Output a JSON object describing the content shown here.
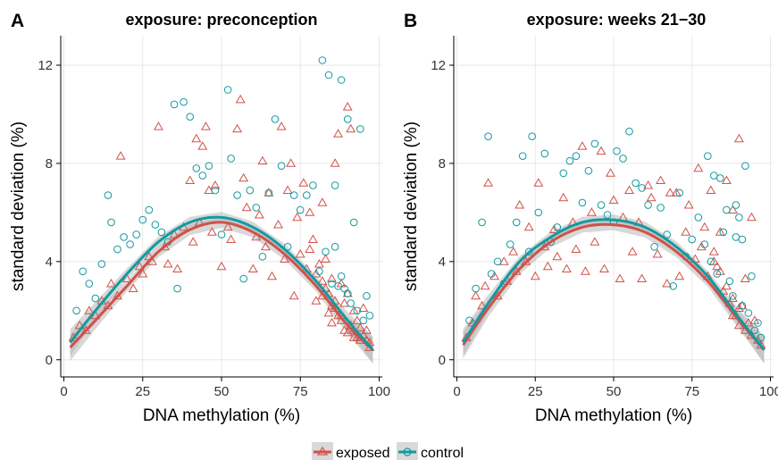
{
  "colors": {
    "exposed": "#d0524a",
    "control": "#139aa0",
    "grid": "#e8e8e8",
    "ribbon": "#b8b8b8"
  },
  "legend": {
    "items": [
      {
        "key": "exposed",
        "label": "exposed"
      },
      {
        "key": "control",
        "label": "control"
      }
    ]
  },
  "chart_data": [
    {
      "type": "scatter",
      "panel_label": "A",
      "title": "exposure: preconception",
      "xlabel": "DNA methylation (%)",
      "ylabel": "standard deviation (%)",
      "xlim": [
        -1,
        101
      ],
      "ylim": [
        -0.7,
        13.2
      ],
      "xticks": [
        0,
        25,
        50,
        75,
        100
      ],
      "yticks": [
        0,
        4,
        8,
        12
      ],
      "grid": true,
      "legend_position": "bottom",
      "series": [
        {
          "name": "exposed",
          "marker": "triangle",
          "fit": {
            "x": [
              2,
              10,
              20,
              30,
              40,
              50,
              60,
              70,
              80,
              90,
              98
            ],
            "y": [
              0.5,
              1.6,
              3.0,
              4.4,
              5.3,
              5.6,
              5.2,
              4.3,
              3.0,
              1.4,
              0.4
            ]
          },
          "x": [
            3,
            5,
            7,
            8,
            10,
            12,
            14,
            15,
            17,
            18,
            20,
            22,
            24,
            25,
            27,
            28,
            30,
            32,
            33,
            35,
            36,
            38,
            40,
            41,
            42,
            43,
            44,
            45,
            46,
            47,
            48,
            50,
            52,
            53,
            55,
            56,
            57,
            58,
            60,
            61,
            62,
            63,
            64,
            65,
            66,
            68,
            69,
            70,
            71,
            72,
            73,
            74,
            75,
            76,
            77,
            78,
            79,
            80,
            80,
            81,
            82,
            82,
            83,
            83,
            84,
            84,
            85,
            85,
            86,
            86,
            87,
            87,
            88,
            88,
            89,
            89,
            90,
            90,
            91,
            91,
            92,
            92,
            93,
            93,
            94,
            94,
            95,
            95,
            96,
            96,
            97,
            97,
            85,
            88,
            90,
            92,
            94,
            78,
            82,
            86
          ],
          "y": [
            0.9,
            1.4,
            1.2,
            2.0,
            1.8,
            2.4,
            2.2,
            3.1,
            2.6,
            8.3,
            3.3,
            2.9,
            3.8,
            3.5,
            4.2,
            4.0,
            9.5,
            4.6,
            3.9,
            5.1,
            3.7,
            5.4,
            7.3,
            4.8,
            9.0,
            5.6,
            8.7,
            9.5,
            6.9,
            5.2,
            7.1,
            3.8,
            5.4,
            4.9,
            9.4,
            10.6,
            7.4,
            6.2,
            3.7,
            5.0,
            5.9,
            8.1,
            4.6,
            6.8,
            3.4,
            5.5,
            9.5,
            4.1,
            6.9,
            8.0,
            2.6,
            5.8,
            4.3,
            7.2,
            3.7,
            6.0,
            4.9,
            2.4,
            3.5,
            3.9,
            2.6,
            6.4,
            2.9,
            4.1,
            1.9,
            2.7,
            3.3,
            2.2,
            8.0,
            2.1,
            9.2,
            1.8,
            3.1,
            1.6,
            2.3,
            1.2,
            10.3,
            2.7,
            9.4,
            1.4,
            2.0,
            1.2,
            1.6,
            0.9,
            1.3,
            0.9,
            2.1,
            1.0,
            0.8,
            1.2,
            0.7,
            0.5,
            1.5,
            1.8,
            1.1,
            0.9,
            0.8,
            4.5,
            3.2,
            2.4
          ]
        },
        {
          "name": "control",
          "marker": "circle",
          "fit": {
            "x": [
              2,
              10,
              20,
              30,
              40,
              50,
              60,
              70,
              80,
              90,
              98
            ],
            "y": [
              0.7,
              2.0,
              3.5,
              4.8,
              5.6,
              5.8,
              5.4,
              4.5,
              3.2,
              1.6,
              0.4
            ]
          },
          "x": [
            4,
            6,
            8,
            10,
            12,
            14,
            15,
            17,
            19,
            21,
            23,
            25,
            27,
            29,
            31,
            33,
            35,
            36,
            38,
            40,
            42,
            44,
            46,
            48,
            50,
            52,
            53,
            55,
            57,
            59,
            61,
            63,
            65,
            67,
            69,
            71,
            73,
            75,
            77,
            79,
            81,
            82,
            83,
            84,
            85,
            86,
            87,
            88,
            89,
            90,
            91,
            92,
            93,
            94,
            95,
            96,
            97,
            86,
            88,
            90
          ],
          "y": [
            2.0,
            3.6,
            3.1,
            2.5,
            3.9,
            6.7,
            5.6,
            4.5,
            5.0,
            4.7,
            5.1,
            5.7,
            6.1,
            5.5,
            5.2,
            4.8,
            10.4,
            2.9,
            10.5,
            9.9,
            7.8,
            7.5,
            7.9,
            6.9,
            5.1,
            11.0,
            8.2,
            6.7,
            3.3,
            6.9,
            6.2,
            4.2,
            6.8,
            9.8,
            7.9,
            4.6,
            6.7,
            6.1,
            6.7,
            7.1,
            3.6,
            12.2,
            4.4,
            11.6,
            3.1,
            7.1,
            3.0,
            11.4,
            2.9,
            9.8,
            2.3,
            5.6,
            2.0,
            9.4,
            1.6,
            2.6,
            1.8,
            4.6,
            3.4,
            2.7
          ]
        }
      ]
    },
    {
      "type": "scatter",
      "panel_label": "B",
      "title": "exposure: weeks 21−30",
      "xlabel": "DNA methylation (%)",
      "ylabel": "standard deviation (%)",
      "xlim": [
        -1,
        101
      ],
      "ylim": [
        -0.7,
        13.2
      ],
      "xticks": [
        0,
        25,
        50,
        75,
        100
      ],
      "yticks": [
        0,
        4,
        8,
        12
      ],
      "grid": true,
      "legend_position": "bottom",
      "series": [
        {
          "name": "exposed",
          "marker": "triangle",
          "fit": {
            "x": [
              2,
              10,
              20,
              30,
              40,
              50,
              60,
              70,
              80,
              90,
              98
            ],
            "y": [
              0.6,
              2.1,
              3.7,
              4.8,
              5.4,
              5.5,
              5.2,
              4.4,
              3.2,
              1.6,
              0.4
            ]
          },
          "x": [
            3,
            5,
            6,
            8,
            9,
            10,
            12,
            13,
            15,
            16,
            18,
            19,
            20,
            22,
            23,
            25,
            26,
            28,
            29,
            31,
            32,
            34,
            35,
            37,
            38,
            40,
            41,
            43,
            44,
            46,
            47,
            49,
            50,
            52,
            53,
            55,
            56,
            58,
            59,
            61,
            62,
            64,
            65,
            67,
            68,
            70,
            71,
            73,
            74,
            76,
            77,
            79,
            80,
            81,
            82,
            83,
            84,
            85,
            86,
            87,
            88,
            89,
            90,
            91,
            92,
            93,
            94,
            95,
            96,
            97,
            78,
            82,
            86,
            88,
            90,
            92,
            94,
            84,
            88,
            90
          ],
          "y": [
            0.9,
            1.5,
            2.6,
            2.2,
            3.0,
            7.2,
            3.4,
            2.6,
            4.0,
            3.2,
            4.4,
            3.6,
            6.3,
            4.0,
            5.4,
            3.4,
            7.2,
            4.6,
            3.8,
            5.3,
            4.2,
            6.6,
            3.7,
            5.6,
            4.5,
            8.7,
            3.6,
            6.0,
            4.8,
            8.5,
            3.7,
            7.6,
            6.5,
            3.3,
            5.8,
            6.9,
            4.4,
            5.6,
            3.3,
            7.1,
            6.6,
            4.3,
            7.3,
            3.1,
            6.8,
            6.8,
            3.4,
            5.2,
            6.3,
            4.1,
            7.8,
            5.4,
            3.4,
            6.9,
            4.0,
            3.8,
            5.2,
            2.8,
            7.3,
            2.3,
            6.1,
            1.8,
            9.0,
            2.2,
            3.3,
            1.5,
            5.8,
            1.6,
            0.8,
            0.6,
            4.6,
            4.4,
            3.0,
            2.5,
            2.1,
            1.2,
            1.0,
            3.6,
            1.8,
            1.4
          ]
        },
        {
          "name": "control",
          "marker": "circle",
          "fit": {
            "x": [
              2,
              10,
              20,
              30,
              40,
              50,
              60,
              70,
              80,
              90,
              98
            ],
            "y": [
              0.7,
              2.3,
              4.0,
              5.0,
              5.6,
              5.7,
              5.4,
              4.6,
              3.4,
              1.7,
              0.4
            ]
          },
          "x": [
            4,
            6,
            8,
            10,
            11,
            13,
            15,
            17,
            19,
            21,
            23,
            24,
            26,
            28,
            30,
            32,
            34,
            36,
            38,
            40,
            42,
            44,
            46,
            48,
            50,
            51,
            53,
            55,
            57,
            59,
            61,
            63,
            65,
            67,
            69,
            71,
            73,
            75,
            77,
            79,
            80,
            81,
            82,
            83,
            84,
            85,
            86,
            87,
            88,
            89,
            90,
            91,
            92,
            93,
            94,
            95,
            96,
            97,
            89,
            91
          ],
          "y": [
            1.6,
            2.9,
            5.6,
            9.1,
            3.5,
            4.0,
            3.1,
            4.7,
            5.6,
            8.3,
            4.4,
            9.1,
            6.0,
            8.4,
            4.8,
            5.4,
            7.6,
            8.1,
            8.3,
            6.4,
            7.7,
            8.8,
            6.3,
            5.9,
            5.6,
            8.5,
            8.2,
            9.3,
            7.2,
            7.0,
            6.3,
            4.6,
            6.2,
            5.1,
            3.0,
            6.8,
            4.2,
            4.9,
            5.8,
            4.7,
            8.3,
            4.0,
            7.5,
            3.5,
            7.4,
            5.2,
            6.1,
            3.2,
            2.6,
            5.0,
            5.8,
            2.2,
            7.9,
            1.9,
            3.4,
            1.2,
            1.5,
            0.9,
            6.3,
            4.9
          ]
        }
      ]
    }
  ]
}
